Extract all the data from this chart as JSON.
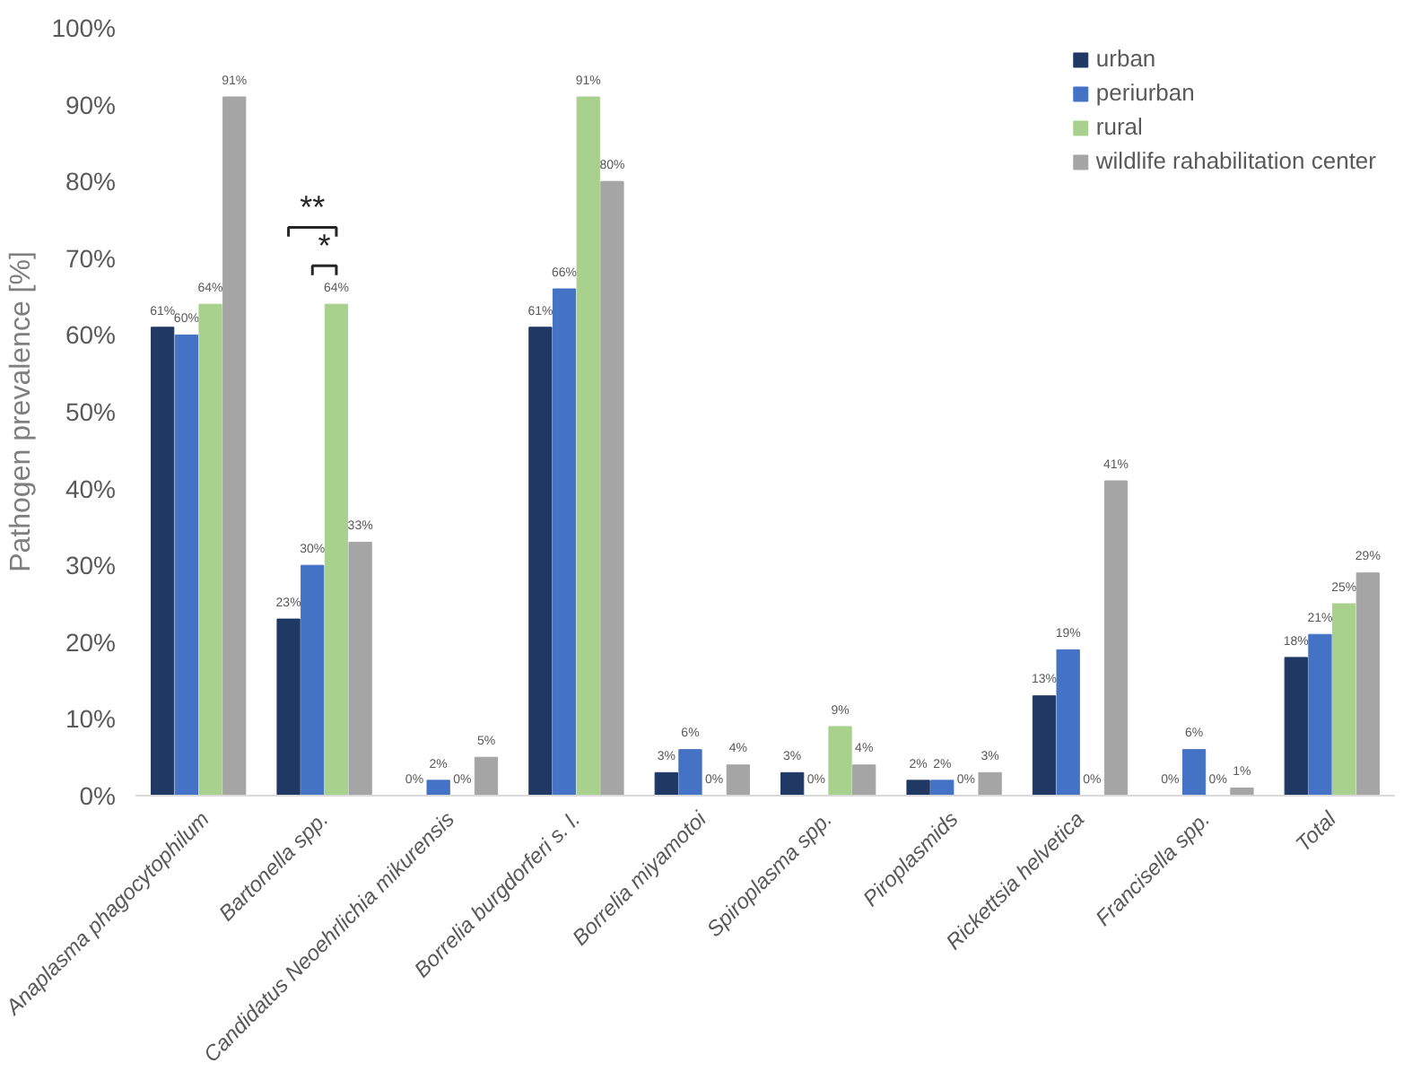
{
  "chart_data": {
    "type": "bar",
    "ylabel": "Pathogen prevalence [%]",
    "categories": [
      "Anaplasma phagocytophilum",
      "Bartonella spp.",
      "Candidatus Neoehrlichia mikurensis",
      "Borrelia burgdorferi s. l.",
      "Borrelia miyamotoi",
      "Spiroplasma spp.",
      "Piroplasmids",
      "Rickettsia helvetica",
      "Francisella spp.",
      "Total"
    ],
    "series": [
      {
        "name": "urban",
        "color": "#1f3864",
        "values": [
          61,
          23,
          0,
          61,
          3,
          3,
          2,
          13,
          0,
          18
        ],
        "value_labels": [
          "61%",
          "23%",
          "0%",
          "61%",
          "3%",
          "3%",
          "2%",
          "13%",
          "0%",
          "18%"
        ]
      },
      {
        "name": "periurban",
        "color": "#4472c4",
        "values": [
          60,
          30,
          2,
          66,
          6,
          0,
          2,
          19,
          6,
          21
        ],
        "value_labels": [
          "60%",
          "30%",
          "2%",
          "66%",
          "6%",
          "0%",
          "2%",
          "19%",
          "6%",
          "21%"
        ]
      },
      {
        "name": "rural",
        "color": "#a9d18e",
        "values": [
          64,
          64,
          0,
          91,
          0,
          9,
          0,
          0,
          0,
          25
        ],
        "value_labels": [
          "64%",
          "64%",
          "0%",
          "91%",
          "0%",
          "9%",
          "0%",
          "0%",
          "0%",
          "25%"
        ]
      },
      {
        "name": "wildlife rahabilitation center",
        "color": "#a5a5a5",
        "values": [
          91,
          33,
          5,
          80,
          4,
          4,
          3,
          41,
          1,
          29
        ],
        "value_labels": [
          "91%",
          "33%",
          "5%",
          "80%",
          "4%",
          "4%",
          "3%",
          "41%",
          "1%",
          "29%"
        ]
      }
    ],
    "ylim": [
      0,
      100
    ],
    "yticks": [
      {
        "value": 0,
        "label": "0%"
      },
      {
        "value": 10,
        "label": "10%"
      },
      {
        "value": 20,
        "label": "20%"
      },
      {
        "value": 30,
        "label": "30%"
      },
      {
        "value": 40,
        "label": "40%"
      },
      {
        "value": 50,
        "label": "50%"
      },
      {
        "value": 60,
        "label": "60%"
      },
      {
        "value": 70,
        "label": "70%"
      },
      {
        "value": 80,
        "label": "80%"
      },
      {
        "value": 90,
        "label": "90%"
      },
      {
        "value": 100,
        "label": "100%"
      }
    ],
    "annotations": [
      "**",
      "*"
    ],
    "grid": false,
    "legend": "top right"
  }
}
